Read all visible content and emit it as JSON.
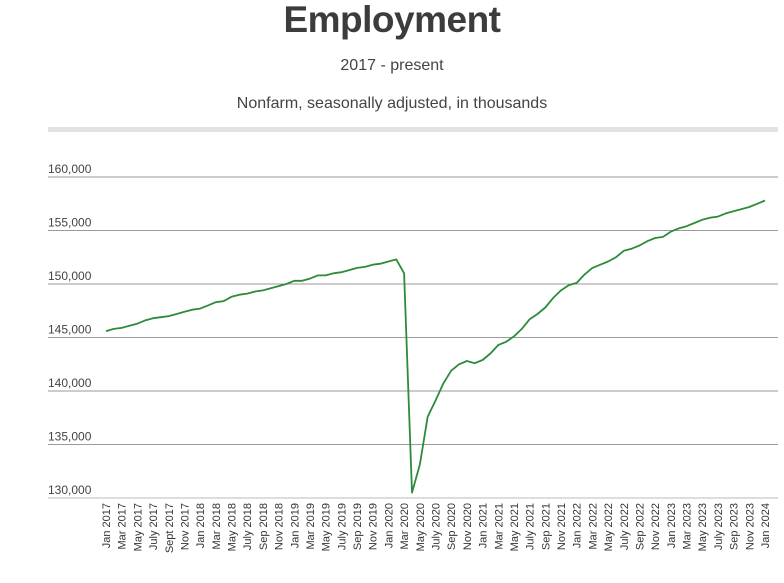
{
  "chart_data": {
    "type": "line",
    "title": "Employment",
    "subtitle": "2017 - present",
    "description": "Nonfarm, seasonally adjusted, in thousands",
    "ylim": [
      130000,
      160000
    ],
    "y_ticks": [
      "160,000",
      "155,000",
      "150,000",
      "145,000",
      "140,000",
      "135,000",
      "130,000"
    ],
    "x_tick_labels": [
      "Jan 2017",
      "Mar 2017",
      "May 2017",
      "July 2017",
      "Sept 2017",
      "Nov 2017",
      "Jan 2018",
      "Mar 2018",
      "May 2018",
      "July 2018",
      "Sep 2018",
      "Nov 2018",
      "Jan 2019",
      "Mar 2019",
      "May 2019",
      "July 2019",
      "Sep 2019",
      "Nov 2019",
      "Jan 2020",
      "Mar 2020",
      "May 2020",
      "July 2020",
      "Sep 2020",
      "Nov 2020",
      "Jan 2021",
      "Mar 2021",
      "May 2021",
      "July 2021",
      "Sep 2021",
      "Nov 2021",
      "Jan 2022",
      "Mar 2022",
      "May 2022",
      "July 2022",
      "Sep 2022",
      "Nov 2022",
      "Jan 2023",
      "Mar 2023",
      "May 2023",
      "July 2023",
      "Sep 2023",
      "Nov 2023",
      "Jan 2024"
    ],
    "line_color": "#2e8b3a",
    "grid": true,
    "series": [
      {
        "x_start": "Jan 2017",
        "values": [
          145600,
          145800,
          145900,
          146100,
          146300,
          146600,
          146800,
          146900,
          147000,
          147200,
          147400,
          147600,
          147700,
          148000,
          148300,
          148400,
          148800,
          149000,
          149100,
          149300,
          149400,
          149600,
          149800,
          150000,
          150300,
          150300,
          150500,
          150800,
          150800,
          151000,
          151100,
          151300,
          151500,
          151600,
          151800,
          151900,
          152100,
          152300,
          151000,
          130500,
          133100,
          137600,
          139100,
          140700,
          141900,
          142500,
          142800,
          142600,
          142900,
          143500,
          144300,
          144600,
          145100,
          145800,
          146700,
          147200,
          147800,
          148700,
          149400,
          149900,
          150100,
          150900,
          151500,
          151800,
          152100,
          152500,
          153100,
          153300,
          153600,
          154000,
          154300,
          154400,
          154900,
          155200,
          155400,
          155700,
          156000,
          156200,
          156300,
          156600,
          156800,
          157000,
          157200,
          157500,
          157800
        ]
      }
    ]
  }
}
